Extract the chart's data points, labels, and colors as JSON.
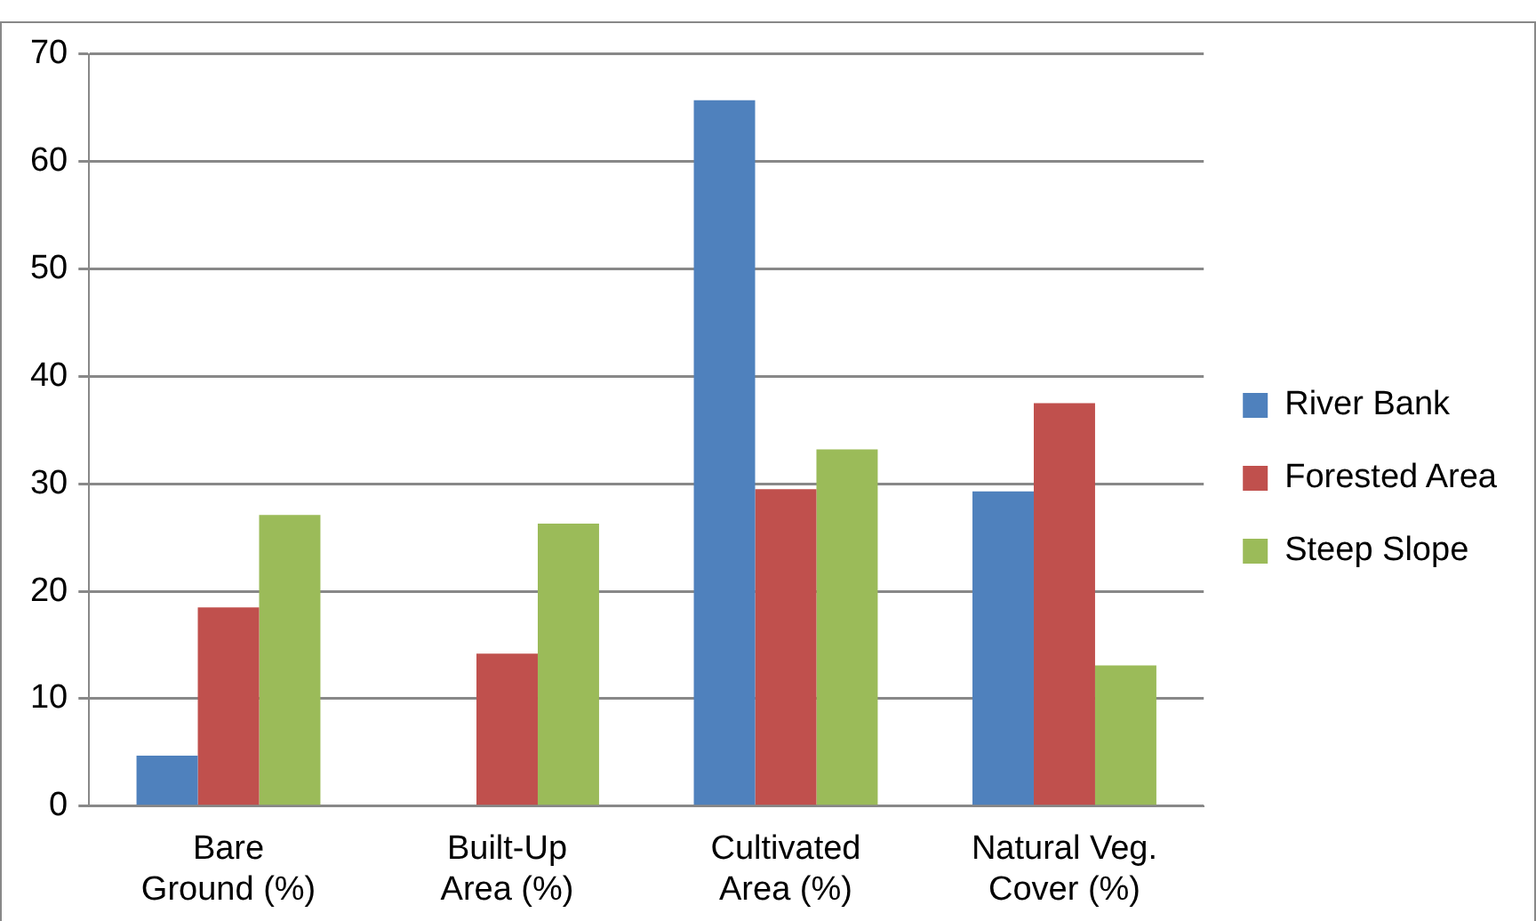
{
  "chart_data": {
    "type": "bar",
    "categories": [
      "Bare Ground (%)",
      "Built-Up Area (%)",
      "Cultivated Area (%)",
      "Natural Veg. Cover (%)"
    ],
    "series": [
      {
        "name": "River Bank",
        "color": "#4f81bd",
        "values": [
          4.7,
          0,
          65.7,
          29.3
        ]
      },
      {
        "name": "Forested Area",
        "color": "#c0504d",
        "values": [
          18.5,
          14.2,
          29.5,
          37.5
        ]
      },
      {
        "name": "Steep Slope",
        "color": "#9bbb59",
        "values": [
          27.1,
          26.3,
          33.2,
          13.1
        ]
      }
    ],
    "ylim": [
      0,
      70
    ],
    "yticks": [
      0,
      10,
      20,
      30,
      40,
      50,
      60,
      70
    ],
    "grid": "y",
    "legend": "right"
  }
}
